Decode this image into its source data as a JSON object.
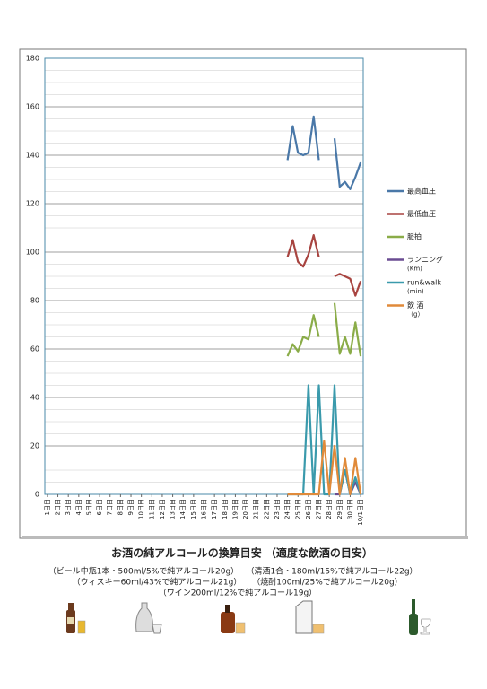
{
  "chart_data": {
    "type": "line",
    "categories": [
      "1日目",
      null,
      "2日目",
      null,
      "3日目",
      null,
      "4日目",
      null,
      "5日目",
      null,
      "6日目",
      null,
      "7日目",
      null,
      "8日目",
      null,
      "9日目",
      null,
      "10日目",
      null,
      "11日目",
      null,
      "12日目",
      null,
      "13日目",
      null,
      "14日目",
      null,
      "15日目",
      null,
      "16日目",
      null,
      "17日目",
      null,
      "18日目",
      null,
      "19日目",
      null,
      "20日目",
      null,
      "21日目",
      null,
      "22日目",
      null,
      "23日目",
      null,
      "24日目",
      null,
      "25日目",
      null,
      "26日目",
      null,
      "27日目",
      null,
      "28日目",
      null,
      "29日目",
      null,
      "30日目",
      null,
      "10/1日目"
    ],
    "series": [
      {
        "name": "最高血圧",
        "color": "#4a78a8",
        "values": [
          null,
          null,
          null,
          null,
          null,
          null,
          null,
          null,
          null,
          null,
          null,
          null,
          null,
          null,
          null,
          null,
          null,
          null,
          null,
          null,
          null,
          null,
          null,
          null,
          null,
          null,
          null,
          null,
          null,
          null,
          null,
          null,
          null,
          null,
          null,
          null,
          null,
          null,
          null,
          null,
          null,
          null,
          null,
          null,
          null,
          null,
          138,
          152,
          141,
          140,
          141,
          156,
          138,
          null,
          null,
          147,
          127,
          129,
          126,
          131,
          137
        ]
      },
      {
        "name": "最低血圧",
        "color": "#a84440",
        "values": [
          null,
          null,
          null,
          null,
          null,
          null,
          null,
          null,
          null,
          null,
          null,
          null,
          null,
          null,
          null,
          null,
          null,
          null,
          null,
          null,
          null,
          null,
          null,
          null,
          null,
          null,
          null,
          null,
          null,
          null,
          null,
          null,
          null,
          null,
          null,
          null,
          null,
          null,
          null,
          null,
          null,
          null,
          null,
          null,
          null,
          null,
          98,
          105,
          96,
          94,
          99,
          107,
          98,
          null,
          null,
          90,
          91,
          90,
          89,
          82,
          88
        ]
      },
      {
        "name": "脈拍",
        "color": "#8aac48",
        "values": [
          null,
          null,
          null,
          null,
          null,
          null,
          null,
          null,
          null,
          null,
          null,
          null,
          null,
          null,
          null,
          null,
          null,
          null,
          null,
          null,
          null,
          null,
          null,
          null,
          null,
          null,
          null,
          null,
          null,
          null,
          null,
          null,
          null,
          null,
          null,
          null,
          null,
          null,
          null,
          null,
          null,
          null,
          null,
          null,
          null,
          null,
          57,
          62,
          59,
          65,
          64,
          74,
          65,
          null,
          null,
          79,
          58,
          65,
          58,
          71,
          57
        ]
      },
      {
        "name": "ランニング",
        "unit": "(Km)",
        "color": "#6a4c92",
        "values": [
          null,
          null,
          null,
          null,
          null,
          null,
          null,
          null,
          null,
          null,
          null,
          null,
          null,
          null,
          null,
          null,
          null,
          null,
          null,
          null,
          null,
          null,
          null,
          null,
          null,
          null,
          null,
          null,
          null,
          null,
          null,
          null,
          null,
          null,
          null,
          null,
          null,
          null,
          null,
          null,
          null,
          null,
          null,
          null,
          null,
          null,
          null,
          null,
          null,
          null,
          null,
          null,
          null,
          null,
          null,
          0,
          0,
          10,
          0,
          5,
          0
        ]
      },
      {
        "name": "run&walk",
        "unit": "(min)",
        "color": "#3a9aac",
        "values": [
          null,
          null,
          null,
          null,
          null,
          null,
          null,
          null,
          null,
          null,
          null,
          null,
          null,
          null,
          null,
          null,
          null,
          null,
          null,
          null,
          null,
          null,
          null,
          null,
          null,
          null,
          null,
          null,
          null,
          null,
          null,
          null,
          null,
          null,
          null,
          null,
          null,
          null,
          null,
          null,
          null,
          null,
          null,
          null,
          null,
          null,
          0,
          0,
          0,
          0,
          45,
          0,
          45,
          0,
          0,
          45,
          0,
          10,
          0,
          7,
          0
        ]
      },
      {
        "name": "飲 酒",
        "unit": "（g）",
        "color": "#e08a3a",
        "values": [
          null,
          null,
          null,
          null,
          null,
          null,
          null,
          null,
          null,
          null,
          null,
          null,
          null,
          null,
          null,
          null,
          null,
          null,
          null,
          null,
          null,
          null,
          null,
          null,
          null,
          null,
          null,
          null,
          null,
          null,
          null,
          null,
          null,
          null,
          null,
          null,
          null,
          null,
          null,
          null,
          null,
          null,
          null,
          null,
          null,
          null,
          0,
          0,
          0,
          0,
          0,
          0,
          0,
          22,
          0,
          20,
          0,
          15,
          0,
          15,
          0
        ]
      }
    ],
    "ylim": [
      0,
      180
    ],
    "yticks": [
      0,
      20,
      40,
      60,
      80,
      100,
      120,
      140,
      160,
      180
    ],
    "grid": true,
    "minor_grid": 5,
    "legend": "right"
  },
  "notes": {
    "title": "お酒の純アルコールの換算目安 （適度な飲酒の目安）",
    "lines": [
      "（ビール中瓶1本・500ml/5%で純アルコール20g）",
      "（清酒1合・180ml/15%で純アルコール22g）",
      "（ウィスキー60ml/43%で純アルコール21g）",
      "（焼酎100ml/25%で純アルコール20g）",
      "（ワイン200ml/12%で純アルコール19g）"
    ]
  }
}
